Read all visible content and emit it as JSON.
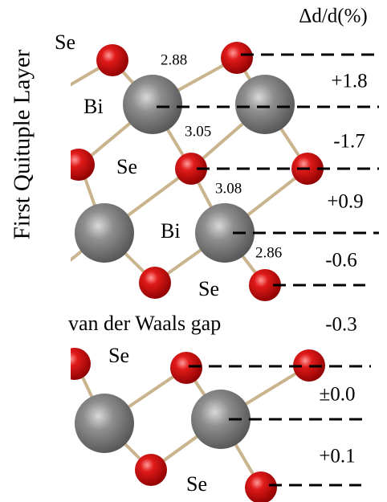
{
  "y_label": "First Quituple Layer",
  "header": "Δd/d(%)",
  "atom_labels": [
    "Se",
    "Bi",
    "Se",
    "Bi",
    "Se",
    "Se",
    "Se"
  ],
  "bond_lengths": [
    "2.88",
    "3.05",
    "3.08",
    "2.86"
  ],
  "gap_label": "van der Waals gap",
  "spacing_changes": [
    "+1.8",
    "-1.7",
    "+0.9",
    "-0.6",
    "-0.3",
    "±0.0",
    "+0.1"
  ]
}
